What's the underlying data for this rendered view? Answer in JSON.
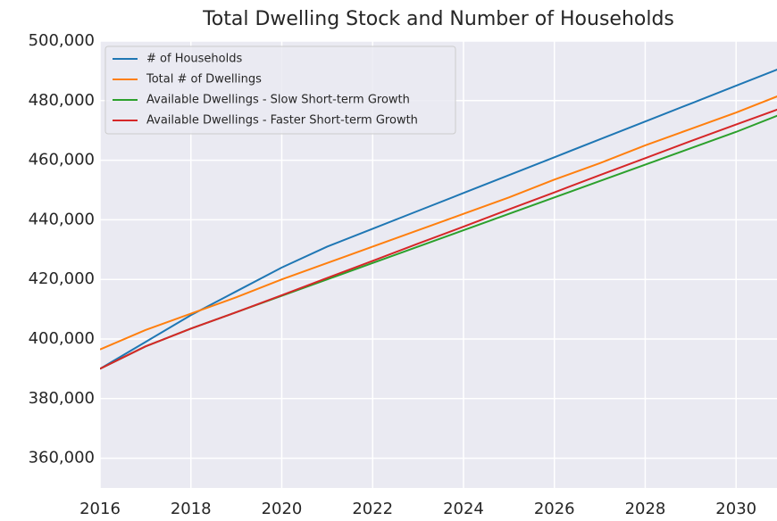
{
  "chart_data": {
    "type": "line",
    "title": "Total Dwelling Stock and Number of Households",
    "x": [
      2016,
      2017,
      2018,
      2019,
      2020,
      2021,
      2022,
      2023,
      2024,
      2025,
      2026,
      2027,
      2028,
      2029,
      2030,
      2031
    ],
    "series": [
      {
        "name": "# of Households",
        "color": "#1f77b4",
        "values": [
          390000,
          399000,
          408000,
          416000,
          424000,
          431000,
          437000,
          443000,
          449000,
          455000,
          461000,
          467000,
          473000,
          479000,
          485000,
          491000
        ]
      },
      {
        "name": "Total # of Dwellings",
        "color": "#ff7f0e",
        "values": [
          396500,
          403000,
          408500,
          414000,
          420000,
          425500,
          431000,
          436500,
          442000,
          447500,
          453500,
          459000,
          465000,
          470500,
          476000,
          482000
        ]
      },
      {
        "name": "Available Dwellings - Slow Short-term Growth",
        "color": "#2ca02c",
        "values": [
          390000,
          397500,
          403500,
          409000,
          414500,
          420000,
          425500,
          431000,
          436500,
          442000,
          447500,
          453000,
          458500,
          464000,
          469500,
          475500
        ]
      },
      {
        "name": "Available Dwellings - Faster Short-term Growth",
        "color": "#d62728",
        "values": [
          390000,
          397500,
          403500,
          409000,
          414700,
          420500,
          426200,
          432000,
          437700,
          443500,
          449200,
          455000,
          460700,
          466400,
          472000,
          477500
        ]
      }
    ],
    "xlim": [
      2016,
      2030.9
    ],
    "xticks": [
      2016,
      2018,
      2020,
      2022,
      2024,
      2026,
      2028,
      2030
    ],
    "ylim": [
      350000,
      500000
    ],
    "yticks": [
      {
        "value": 360000,
        "label": "360,000"
      },
      {
        "value": 380000,
        "label": "380,000"
      },
      {
        "value": 400000,
        "label": "400,000"
      },
      {
        "value": 420000,
        "label": "420,000"
      },
      {
        "value": 440000,
        "label": "440,000"
      },
      {
        "value": 460000,
        "label": "460,000"
      },
      {
        "value": 480000,
        "label": "480,000"
      },
      {
        "value": 500000,
        "label": "500,000"
      }
    ],
    "grid": true,
    "legend": "upper left"
  }
}
